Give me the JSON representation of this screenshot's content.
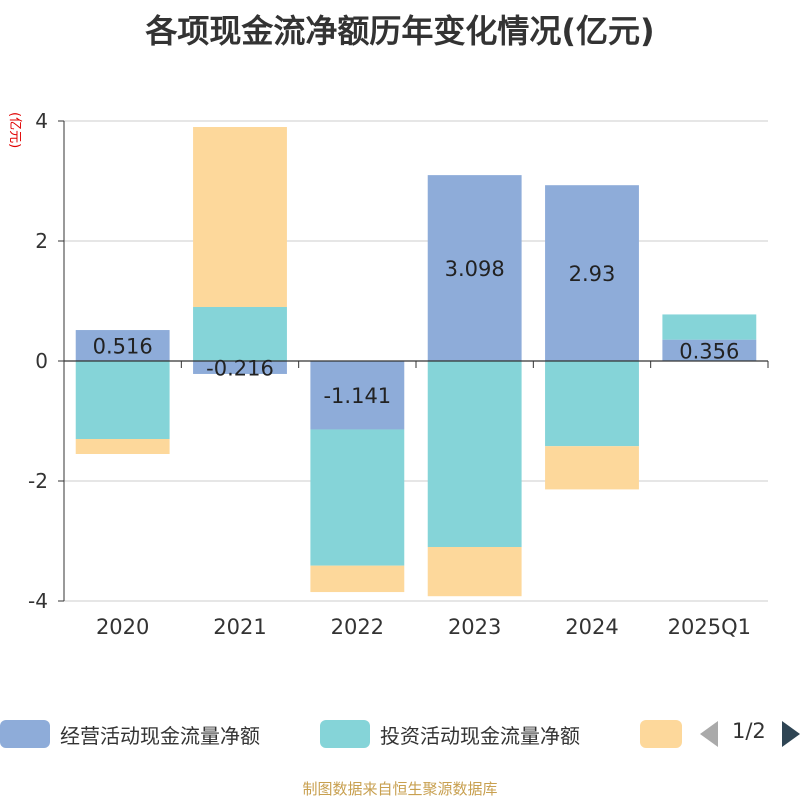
{
  "chart_data": {
    "type": "bar",
    "stacked": true,
    "title": "各项现金流净额历年变化情况(亿元)",
    "ylabel": "(亿元)",
    "categories": [
      "2020",
      "2021",
      "2022",
      "2023",
      "2024",
      "2025Q1"
    ],
    "ylim": [
      -4,
      4
    ],
    "yticks": [
      4,
      2,
      0,
      -2,
      -4
    ],
    "grid": true,
    "series": [
      {
        "name": "经营活动现金流量净额",
        "color": "#8eacd9",
        "values": [
          0.516,
          -0.216,
          -1.141,
          3.098,
          2.93,
          0.356
        ],
        "labels": [
          "0.516",
          "-0.216",
          "-1.141",
          "3.098",
          "2.93",
          "0.356"
        ]
      },
      {
        "name": "投资活动现金流量净额",
        "color": "#85d4d8",
        "values": [
          -1.3,
          0.9,
          -2.27,
          -3.1,
          -1.42,
          0.42
        ]
      },
      {
        "name": "",
        "color": "#fdd89b",
        "values": [
          -0.25,
          3.0,
          -0.44,
          -0.82,
          -0.72,
          0
        ]
      }
    ]
  },
  "legend": {
    "items": [
      {
        "label": "经营活动现金流量净额",
        "color": "#8eacd9"
      },
      {
        "label": "投资活动现金流量净额",
        "color": "#85d4d8"
      },
      {
        "label": "",
        "color": "#fdd89b"
      }
    ],
    "page": "1/2"
  },
  "source": "制图数据来自恒生聚源数据库"
}
